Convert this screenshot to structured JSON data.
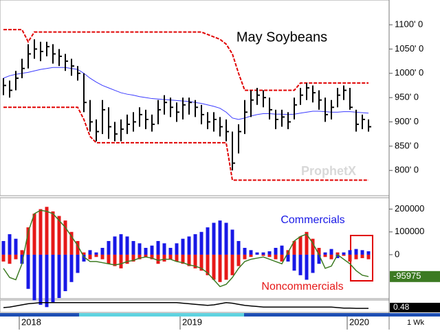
{
  "chart_data": [
    {
      "type": "ohlc",
      "title": "May Soybeans",
      "watermark": "ProphetX",
      "periodicity": "1 Wk",
      "categories": [
        null,
        null,
        null,
        "2018",
        null,
        null,
        null,
        null,
        null,
        null,
        null,
        null,
        null,
        null,
        null,
        null,
        null,
        null,
        null,
        null,
        null,
        null,
        null,
        null,
        null,
        null,
        null,
        null,
        null,
        "2019",
        null,
        null,
        null,
        null,
        null,
        null,
        null,
        null,
        null,
        null,
        null,
        null,
        null,
        null,
        null,
        null,
        null,
        null,
        null,
        null,
        null,
        null,
        null,
        null,
        null,
        null,
        "2020",
        null,
        null,
        null
      ],
      "high": [
        990,
        985,
        1005,
        1030,
        1060,
        1070,
        1065,
        1065,
        1060,
        1050,
        1040,
        1030,
        1015,
        1000,
        945,
        905,
        945,
        930,
        900,
        905,
        915,
        920,
        930,
        925,
        915,
        945,
        955,
        950,
        940,
        950,
        950,
        945,
        935,
        920,
        920,
        910,
        905,
        880,
        895,
        945,
        965,
        970,
        965,
        950,
        925,
        925,
        920,
        950,
        970,
        980,
        975,
        965,
        950,
        945,
        970,
        975,
        970,
        925,
        915,
        905
      ],
      "low": [
        955,
        950,
        965,
        990,
        1010,
        1030,
        1025,
        1035,
        1020,
        1015,
        1005,
        995,
        985,
        920,
        880,
        860,
        875,
        865,
        860,
        860,
        875,
        880,
        890,
        885,
        880,
        895,
        915,
        910,
        900,
        905,
        915,
        910,
        895,
        885,
        880,
        870,
        860,
        800,
        835,
        875,
        910,
        935,
        930,
        905,
        885,
        890,
        885,
        905,
        935,
        945,
        940,
        925,
        900,
        905,
        930,
        945,
        925,
        880,
        885,
        880
      ],
      "close": [
        975,
        965,
        990,
        1010,
        1040,
        1050,
        1045,
        1055,
        1040,
        1035,
        1025,
        1015,
        1000,
        940,
        900,
        880,
        925,
        890,
        875,
        885,
        895,
        900,
        915,
        905,
        895,
        925,
        940,
        930,
        920,
        935,
        940,
        930,
        915,
        900,
        905,
        890,
        880,
        815,
        880,
        920,
        945,
        955,
        950,
        925,
        905,
        910,
        900,
        935,
        955,
        970,
        960,
        945,
        915,
        930,
        955,
        965,
        930,
        895,
        905,
        890
      ],
      "bar_color": "#000000",
      "lines": [
        {
          "color": "#3a3aff",
          "dashed": false,
          "values": [
            990,
            995,
            998,
            1000,
            1002,
            1005,
            1008,
            1010,
            1012,
            1012,
            1012,
            1010,
            1008,
            1000,
            990,
            982,
            975,
            970,
            965,
            960,
            957,
            955,
            952,
            950,
            948,
            947,
            946,
            945,
            944,
            943,
            942,
            940,
            938,
            935,
            932,
            928,
            920,
            908,
            905,
            908,
            912,
            915,
            917,
            917,
            916,
            916,
            915,
            916,
            918,
            920,
            922,
            922,
            921,
            920,
            920,
            921,
            921,
            920,
            919,
            918
          ]
        },
        {
          "color": "#e00000",
          "dashed": true,
          "values": [
            1090,
            1090,
            1090,
            1090,
            1065,
            1085,
            1085,
            1085,
            1085,
            1085,
            1085,
            1085,
            1085,
            1085,
            1085,
            1085,
            1085,
            1085,
            1085,
            1085,
            1085,
            1085,
            1085,
            1085,
            1085,
            1085,
            1085,
            1085,
            1085,
            1085,
            1085,
            1085,
            1085,
            1080,
            1075,
            1070,
            1060,
            1040,
            1000,
            965,
            965,
            965,
            965,
            965,
            965,
            965,
            965,
            965,
            980,
            980,
            980,
            980,
            980,
            980,
            980,
            980,
            980,
            980,
            980,
            980
          ]
        },
        {
          "color": "#e00000",
          "dashed": true,
          "values": [
            930,
            930,
            930,
            930,
            930,
            930,
            930,
            930,
            930,
            930,
            930,
            930,
            930,
            905,
            870,
            857,
            857,
            857,
            857,
            857,
            857,
            857,
            857,
            857,
            857,
            857,
            857,
            857,
            857,
            857,
            857,
            857,
            857,
            857,
            857,
            857,
            857,
            780,
            780,
            780,
            780,
            780,
            780,
            780,
            780,
            780,
            780,
            780,
            780,
            780,
            780,
            780,
            780,
            780,
            780,
            780,
            780,
            780,
            780,
            780
          ]
        }
      ],
      "ylim": [
        748,
        1151
      ],
      "yticks": [
        {
          "value": 800,
          "label": "800' 0"
        },
        {
          "value": 850,
          "label": "850' 0"
        },
        {
          "value": 900,
          "label": "900' 0"
        },
        {
          "value": 950,
          "label": "950' 0"
        },
        {
          "value": 1000,
          "label": "1000' 0"
        },
        {
          "value": 1050,
          "label": "1050' 0"
        },
        {
          "value": 1100,
          "label": "1100' 0"
        }
      ]
    },
    {
      "type": "bar",
      "series": [
        {
          "name": "Commercials",
          "color": "#1818e6",
          "values": [
            60000,
            90000,
            70000,
            -40000,
            -150000,
            -200000,
            -220000,
            -230000,
            -210000,
            -190000,
            -160000,
            -120000,
            -80000,
            -30000,
            20000,
            10000,
            30000,
            60000,
            80000,
            90000,
            80000,
            60000,
            50000,
            30000,
            40000,
            60000,
            50000,
            30000,
            50000,
            70000,
            80000,
            90000,
            100000,
            120000,
            140000,
            150000,
            140000,
            110000,
            60000,
            30000,
            20000,
            10000,
            10000,
            15000,
            30000,
            40000,
            -30000,
            -70000,
            -90000,
            -110000,
            -80000,
            -40000,
            10000,
            25000,
            -15000,
            10000,
            20000,
            25000,
            20000,
            15000
          ]
        },
        {
          "name": "Noncommercials",
          "color": "#e61818",
          "values": [
            -30000,
            -40000,
            -20000,
            20000,
            120000,
            180000,
            200000,
            210000,
            190000,
            170000,
            150000,
            100000,
            60000,
            10000,
            -20000,
            -10000,
            -20000,
            -40000,
            -50000,
            -60000,
            -40000,
            -30000,
            -20000,
            -10000,
            -20000,
            -40000,
            -30000,
            -20000,
            -30000,
            -40000,
            -50000,
            -60000,
            -70000,
            -90000,
            -110000,
            -120000,
            -110000,
            -90000,
            -50000,
            -20000,
            -10000,
            0,
            -5000,
            -10000,
            -20000,
            -30000,
            20000,
            60000,
            80000,
            100000,
            70000,
            30000,
            -10000,
            -20000,
            10000,
            -5000,
            -30000,
            -20000,
            -15000,
            -20000
          ]
        }
      ],
      "line": {
        "color": "#3c7a22",
        "values": [
          -60000,
          -100000,
          -110000,
          -40000,
          100000,
          180000,
          195000,
          190000,
          180000,
          150000,
          120000,
          80000,
          40000,
          -10000,
          -30000,
          -30000,
          -35000,
          -40000,
          -45000,
          -40000,
          -30000,
          -25000,
          -15000,
          -10000,
          -15000,
          -25000,
          -20000,
          -20000,
          -30000,
          -35000,
          -45000,
          -50000,
          -60000,
          -80000,
          -110000,
          -140000,
          -130000,
          -100000,
          -60000,
          -30000,
          -20000,
          -15000,
          -10000,
          -20000,
          -30000,
          -40000,
          10000,
          60000,
          80000,
          90000,
          50000,
          0,
          -60000,
          -50000,
          0,
          -20000,
          -40000,
          -70000,
          -90000,
          -95975
        ]
      },
      "ylim": [
        -190000,
        250000
      ],
      "yticks": [
        0,
        100000,
        200000
      ]
    },
    {
      "type": "line",
      "color": "#000000",
      "values": [
        0.55,
        0.6,
        0.7,
        0.8,
        0.9,
        0.95,
        1.0,
        1.0,
        1.0,
        1.0,
        1.0,
        1.0,
        1.0,
        1.0,
        1.0,
        1.0,
        1.0,
        1.0,
        1.0,
        1.0,
        1.0,
        1.0,
        1.0,
        1.0,
        1.0,
        1.0,
        1.0,
        1.0,
        1.0,
        0.95,
        0.9,
        0.85,
        0.8,
        0.75,
        0.8,
        0.9,
        1.0,
        0.95,
        0.85,
        0.75,
        0.7,
        0.65,
        0.6,
        0.6,
        0.6,
        0.6,
        0.6,
        0.6,
        0.6,
        0.6,
        0.6,
        0.6,
        0.6,
        0.6,
        0.55,
        0.5,
        0.5,
        0.48,
        0.48,
        0.48
      ],
      "ylim": [
        0.3,
        1.05
      ]
    }
  ]
}
